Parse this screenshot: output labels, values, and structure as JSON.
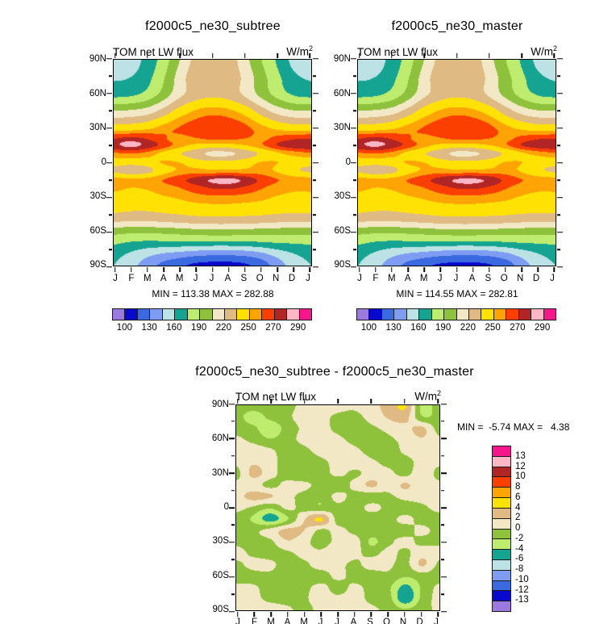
{
  "page": {
    "background": "#FFFFFF"
  },
  "palette": [
    "#9B79DF",
    "#0909CE",
    "#3A69E0",
    "#7E9DF2",
    "#BCE2E6",
    "#16A492",
    "#BEEC6E",
    "#8FC23C",
    "#F2E8C6",
    "#DFBB83",
    "#FFE203",
    "#FFA404",
    "#FB3F00",
    "#B22525",
    "#FFB7C5",
    "#F8168C"
  ],
  "chart_data": [
    {
      "id": "subtree",
      "type": "heatmap",
      "style": "filled-contour",
      "title": "f2000c5_ne30_subtree",
      "field_label": "TOM net LW flux",
      "units_base": "W/m",
      "units_exp": "2",
      "min": 113.38,
      "max": 282.88,
      "minmax_text": "MIN = 113.38 MAX = 282.88",
      "clamp": [
        113.38,
        282.88
      ],
      "x_tick_labels": [
        "J",
        "F",
        "M",
        "A",
        "M",
        "J",
        "J",
        "A",
        "S",
        "O",
        "N",
        "D",
        "J"
      ],
      "y_tick_labels": [
        "90N",
        "60N",
        "30N",
        "0",
        "30S",
        "60S",
        "90S"
      ],
      "levels": [
        100,
        115,
        130,
        145,
        160,
        175,
        190,
        205,
        220,
        235,
        250,
        260,
        270,
        280,
        290
      ],
      "colorbar_labels": [
        "100",
        "130",
        "160",
        "190",
        "220",
        "250",
        "270",
        "290"
      ],
      "colorbar_label_positions": [
        1,
        3,
        5,
        7,
        9,
        11,
        13,
        15
      ],
      "lat_rows": [
        90,
        75,
        60,
        45,
        30,
        20,
        15,
        8,
        0,
        -7,
        -15,
        -22,
        -30,
        -40,
        -50,
        -60,
        -70,
        -80,
        -90
      ],
      "values": [
        [
          150,
          152,
          165,
          182,
          205,
          225,
          230,
          228,
          210,
          190,
          172,
          155,
          150
        ],
        [
          158,
          160,
          170,
          188,
          212,
          230,
          234,
          231,
          215,
          196,
          178,
          163,
          158
        ],
        [
          170,
          172,
          180,
          196,
          216,
          228,
          232,
          229,
          217,
          200,
          184,
          173,
          170
        ],
        [
          206,
          208,
          213,
          226,
          242,
          252,
          256,
          253,
          244,
          228,
          214,
          207,
          206
        ],
        [
          243,
          244,
          248,
          255,
          261,
          266,
          269,
          268,
          263,
          254,
          247,
          243,
          243
        ],
        [
          272,
          276,
          271,
          262,
          256,
          258,
          260,
          260,
          259,
          258,
          265,
          271,
          272
        ],
        [
          277,
          283,
          276,
          266,
          254,
          246,
          243,
          244,
          249,
          258,
          270,
          276,
          277
        ],
        [
          258,
          260,
          256,
          246,
          236,
          226,
          216,
          217,
          226,
          238,
          248,
          254,
          258
        ],
        [
          242,
          241,
          243,
          251,
          250,
          243,
          240,
          240,
          244,
          251,
          250,
          243,
          242
        ],
        [
          232,
          226,
          230,
          244,
          252,
          254,
          252,
          252,
          253,
          254,
          248,
          238,
          232
        ],
        [
          255,
          252,
          254,
          260,
          267,
          274,
          281,
          283,
          277,
          267,
          260,
          256,
          255
        ],
        [
          252,
          250,
          251,
          255,
          260,
          266,
          271,
          272,
          268,
          261,
          255,
          252,
          252
        ],
        [
          247,
          245,
          246,
          249,
          252,
          256,
          258,
          258,
          256,
          253,
          249,
          247,
          247
        ],
        [
          240,
          238,
          238,
          240,
          242,
          244,
          245,
          245,
          244,
          243,
          241,
          240,
          240
        ],
        [
          225,
          223,
          223,
          225,
          227,
          229,
          230,
          230,
          229,
          228,
          226,
          225,
          225
        ],
        [
          197,
          195,
          195,
          196,
          198,
          200,
          201,
          201,
          200,
          199,
          198,
          197,
          197
        ],
        [
          178,
          174,
          172,
          172,
          172,
          172,
          171,
          171,
          172,
          174,
          176,
          177,
          178
        ],
        [
          165,
          158,
          150,
          144,
          140,
          136,
          134,
          134,
          136,
          142,
          152,
          160,
          165
        ],
        [
          160,
          150,
          138,
          126,
          118,
          112,
          110,
          110,
          113,
          122,
          138,
          152,
          160
        ]
      ]
    },
    {
      "id": "master",
      "type": "heatmap",
      "style": "filled-contour",
      "title": "f2000c5_ne30_master",
      "field_label": "TOM net LW flux",
      "units_base": "W/m",
      "units_exp": "2",
      "min": 114.55,
      "max": 282.81,
      "minmax_text": "MIN = 114.55 MAX = 282.81",
      "clamp": [
        114.55,
        282.81
      ],
      "x_tick_labels": [
        "J",
        "F",
        "M",
        "A",
        "M",
        "J",
        "J",
        "A",
        "S",
        "O",
        "N",
        "D",
        "J"
      ],
      "y_tick_labels": [
        "90N",
        "60N",
        "30N",
        "0",
        "30S",
        "60S",
        "90S"
      ],
      "levels": [
        100,
        115,
        130,
        145,
        160,
        175,
        190,
        205,
        220,
        235,
        250,
        260,
        270,
        280,
        290
      ],
      "colorbar_labels": [
        "100",
        "130",
        "160",
        "190",
        "220",
        "250",
        "270",
        "290"
      ],
      "colorbar_label_positions": [
        1,
        3,
        5,
        7,
        9,
        11,
        13,
        15
      ],
      "lat_rows": [
        90,
        75,
        60,
        45,
        30,
        20,
        15,
        8,
        0,
        -7,
        -15,
        -22,
        -30,
        -40,
        -50,
        -60,
        -70,
        -80,
        -90
      ],
      "values": [
        [
          150,
          152,
          165,
          182,
          205,
          225,
          230,
          228,
          210,
          190,
          172,
          155,
          150
        ],
        [
          158,
          160,
          170,
          188,
          212,
          230,
          234,
          231,
          215,
          196,
          178,
          163,
          158
        ],
        [
          170,
          172,
          180,
          196,
          216,
          228,
          232,
          229,
          217,
          200,
          184,
          173,
          170
        ],
        [
          206,
          208,
          213,
          226,
          242,
          252,
          256,
          253,
          244,
          228,
          214,
          207,
          206
        ],
        [
          243,
          244,
          248,
          255,
          261,
          266,
          269,
          268,
          263,
          254,
          247,
          243,
          243
        ],
        [
          272,
          276,
          271,
          262,
          256,
          258,
          260,
          260,
          259,
          258,
          265,
          271,
          272
        ],
        [
          277,
          282,
          276,
          266,
          254,
          246,
          243,
          244,
          249,
          258,
          270,
          276,
          277
        ],
        [
          258,
          260,
          256,
          246,
          236,
          226,
          216,
          217,
          226,
          238,
          248,
          254,
          258
        ],
        [
          242,
          241,
          243,
          251,
          250,
          243,
          240,
          240,
          244,
          251,
          250,
          243,
          242
        ],
        [
          232,
          226,
          230,
          244,
          252,
          254,
          252,
          252,
          253,
          254,
          248,
          238,
          232
        ],
        [
          255,
          252,
          254,
          260,
          267,
          274,
          281,
          282,
          277,
          267,
          260,
          256,
          255
        ],
        [
          252,
          250,
          251,
          255,
          260,
          266,
          271,
          272,
          268,
          261,
          255,
          252,
          252
        ],
        [
          247,
          245,
          246,
          249,
          252,
          256,
          258,
          258,
          256,
          253,
          249,
          247,
          247
        ],
        [
          240,
          238,
          238,
          240,
          242,
          244,
          245,
          245,
          244,
          243,
          241,
          240,
          240
        ],
        [
          225,
          223,
          223,
          225,
          227,
          229,
          230,
          230,
          229,
          228,
          226,
          225,
          225
        ],
        [
          197,
          195,
          195,
          196,
          198,
          200,
          201,
          201,
          200,
          199,
          198,
          197,
          197
        ],
        [
          178,
          174,
          172,
          172,
          172,
          172,
          171,
          171,
          172,
          174,
          176,
          177,
          178
        ],
        [
          165,
          158,
          150,
          144,
          140,
          136,
          134,
          134,
          136,
          142,
          152,
          160,
          165
        ],
        [
          160,
          150,
          138,
          126,
          118,
          113,
          111,
          111,
          114,
          122,
          138,
          152,
          160
        ]
      ]
    },
    {
      "id": "diff",
      "type": "heatmap",
      "style": "filled-contour",
      "title": "f2000c5_ne30_subtree - f2000c5_ne30_master",
      "field_label": "TOM net LW flux",
      "units_base": "W/m",
      "units_exp": "2",
      "min": -5.74,
      "max": 4.38,
      "minmax_text": "MIN =  -5.74 MAX =   4.38",
      "clamp": [
        -5.74,
        4.38
      ],
      "x_tick_labels": [
        "J",
        "F",
        "M",
        "A",
        "M",
        "J",
        "J",
        "A",
        "S",
        "O",
        "N",
        "D",
        "J"
      ],
      "y_tick_labels": [
        "90N",
        "60N",
        "30N",
        "0",
        "30S",
        "60S",
        "90S"
      ],
      "levels": [
        -13,
        -12,
        -10,
        -8,
        -6,
        -4,
        -2,
        0,
        2,
        4,
        6,
        8,
        10,
        12,
        13
      ],
      "colorbar_labels": [
        "13",
        "12",
        "10",
        "8",
        "6",
        "4",
        "2",
        "0",
        "-2",
        "-4",
        "-6",
        "-8",
        "-10",
        "-12",
        "-13"
      ],
      "colorbar_label_positions": [
        1,
        2,
        3,
        4,
        5,
        6,
        7,
        8,
        9,
        10,
        11,
        12,
        13,
        14,
        15
      ],
      "lat_rows": [
        90,
        80,
        70,
        60,
        50,
        40,
        30,
        20,
        10,
        0,
        -10,
        -20,
        -30,
        -40,
        -50,
        -60,
        -70,
        -80,
        -90
      ],
      "values": [
        [
          -1.0,
          -1.2,
          -0.9,
          -0.6,
          0.6,
          1.0,
          0.8,
          0.4,
          1.5,
          2.6,
          4.3,
          -2.6,
          -1.0
        ],
        [
          -1.4,
          -2.8,
          -1.5,
          -0.4,
          0.8,
          0.6,
          -0.4,
          -0.6,
          0.8,
          2.2,
          2.8,
          -1.8,
          -1.4
        ],
        [
          -0.8,
          -1.6,
          -3.2,
          -1.2,
          0.4,
          0.8,
          -0.6,
          -1.0,
          -0.4,
          0.6,
          1.4,
          2.4,
          -0.8
        ],
        [
          0.4,
          -0.6,
          -1.8,
          -0.8,
          0.6,
          1.2,
          0.6,
          -0.8,
          -1.2,
          -0.4,
          0.6,
          1.8,
          0.4
        ],
        [
          0.8,
          1.2,
          0.4,
          -1.0,
          -0.6,
          0.8,
          1.4,
          0.6,
          -0.8,
          -1.0,
          0.4,
          1.2,
          0.8
        ],
        [
          0.4,
          1.8,
          0.6,
          -0.8,
          -1.2,
          -0.6,
          0.8,
          1.0,
          0.4,
          -0.6,
          -0.8,
          0.8,
          0.4
        ],
        [
          -0.6,
          2.6,
          0.8,
          -1.0,
          -1.4,
          -0.8,
          0.4,
          -0.4,
          0.8,
          0.6,
          -0.6,
          1.4,
          -0.6
        ],
        [
          0.6,
          0.8,
          -0.6,
          0.6,
          0.4,
          -0.6,
          -1.2,
          0.6,
          2.4,
          0.8,
          2.3,
          0.6,
          0.6
        ],
        [
          1.4,
          2.7,
          2.2,
          0.6,
          -0.6,
          -1.4,
          0.6,
          -0.8,
          -1.0,
          -0.4,
          0.6,
          0.8,
          1.4
        ],
        [
          0.6,
          -0.4,
          -1.8,
          0.4,
          -0.8,
          -1.6,
          -0.6,
          -1.0,
          0.6,
          -0.6,
          -0.8,
          -0.4,
          0.6
        ],
        [
          -0.8,
          -2.4,
          -4.9,
          -2.2,
          1.8,
          4.3,
          -0.8,
          -0.6,
          -1.4,
          -0.6,
          0.4,
          -0.6,
          -0.8
        ],
        [
          -0.6,
          -0.4,
          0.8,
          2.6,
          2.0,
          -0.4,
          0.6,
          -0.6,
          -1.0,
          -0.4,
          -0.6,
          0.4,
          -0.6
        ],
        [
          -0.4,
          -0.8,
          -0.4,
          1.8,
          0.6,
          -0.8,
          0.6,
          1.0,
          -2.4,
          -0.4,
          0.4,
          -0.4,
          -0.4
        ],
        [
          0.6,
          -0.4,
          -0.8,
          -0.4,
          0.6,
          0.4,
          1.6,
          0.6,
          -0.6,
          0.6,
          -0.4,
          1.2,
          0.6
        ],
        [
          -0.4,
          0.6,
          0.4,
          -0.8,
          -0.4,
          0.8,
          0.6,
          -0.4,
          0.8,
          0.4,
          -0.6,
          2.3,
          -0.4
        ],
        [
          -1.0,
          -0.6,
          -0.4,
          -1.0,
          -0.6,
          -0.8,
          0.4,
          -0.6,
          -1.0,
          -0.4,
          -1.8,
          -0.8,
          -1.0
        ],
        [
          0.4,
          0.2,
          -0.6,
          -0.8,
          -0.4,
          0.4,
          -0.6,
          0.3,
          -0.6,
          -1.6,
          -4.6,
          -1.6,
          0.4
        ],
        [
          0.6,
          0.4,
          -0.4,
          -0.6,
          -0.2,
          0.6,
          0.4,
          0.5,
          -0.4,
          -1.2,
          -5.5,
          -1.4,
          0.6
        ],
        [
          0.3,
          0.5,
          0.8,
          0.3,
          -0.4,
          0.5,
          1.4,
          0.6,
          0.3,
          -0.5,
          -1.8,
          -0.6,
          0.3
        ]
      ]
    }
  ]
}
